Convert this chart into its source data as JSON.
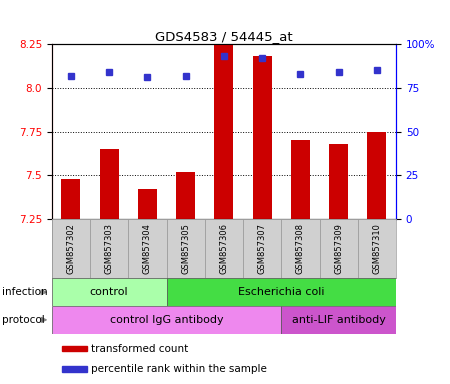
{
  "title": "GDS4583 / 54445_at",
  "samples": [
    "GSM857302",
    "GSM857303",
    "GSM857304",
    "GSM857305",
    "GSM857306",
    "GSM857307",
    "GSM857308",
    "GSM857309",
    "GSM857310"
  ],
  "transformed_count": [
    7.48,
    7.65,
    7.42,
    7.52,
    8.25,
    8.18,
    7.7,
    7.68,
    7.75
  ],
  "percentile_rank": [
    82,
    84,
    81,
    82,
    93,
    92,
    83,
    84,
    85
  ],
  "ylim_left": [
    7.25,
    8.25
  ],
  "ylim_right": [
    0,
    100
  ],
  "yticks_left": [
    7.25,
    7.5,
    7.75,
    8.0,
    8.25
  ],
  "yticks_right": [
    0,
    25,
    50,
    75,
    100
  ],
  "bar_color": "#cc0000",
  "dot_color": "#3333cc",
  "plot_bg_color": "#ffffff",
  "infection_groups": [
    {
      "label": "control",
      "start": 0,
      "end": 3,
      "color": "#aaffaa"
    },
    {
      "label": "Escherichia coli",
      "start": 3,
      "end": 9,
      "color": "#44dd44"
    }
  ],
  "protocol_groups": [
    {
      "label": "control IgG antibody",
      "start": 0,
      "end": 6,
      "color": "#ee88ee"
    },
    {
      "label": "anti-LIF antibody",
      "start": 6,
      "end": 9,
      "color": "#cc55cc"
    }
  ],
  "legend_items": [
    {
      "color": "#cc0000",
      "label": "transformed count"
    },
    {
      "color": "#3333cc",
      "label": "percentile rank within the sample"
    }
  ],
  "sample_box_color": "#d0d0d0",
  "sample_box_edge": "#999999"
}
